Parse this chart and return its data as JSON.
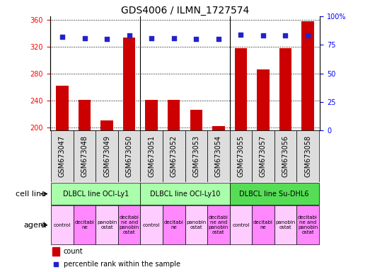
{
  "title": "GDS4006 / ILMN_1727574",
  "samples": [
    "GSM673047",
    "GSM673048",
    "GSM673049",
    "GSM673050",
    "GSM673051",
    "GSM673052",
    "GSM673053",
    "GSM673054",
    "GSM673055",
    "GSM673057",
    "GSM673056",
    "GSM673058"
  ],
  "counts": [
    262,
    241,
    210,
    333,
    241,
    241,
    226,
    202,
    318,
    286,
    318,
    358
  ],
  "percentile_ranks": [
    82,
    81,
    80,
    83,
    81,
    81,
    80,
    80,
    84,
    83,
    83,
    83
  ],
  "ymin": 195,
  "ymax": 365,
  "yticks": [
    200,
    240,
    280,
    320,
    360
  ],
  "y2ticks": [
    0,
    25,
    50,
    75,
    100
  ],
  "y2min": 0,
  "y2max": 100,
  "bar_color": "#cc0000",
  "dot_color": "#2222cc",
  "cell_line_colors": [
    "#aaffaa",
    "#aaffaa",
    "#55dd55"
  ],
  "cell_lines": [
    {
      "label": "DLBCL line OCI-Ly1",
      "start": 0,
      "end": 4
    },
    {
      "label": "DLBCL line OCI-Ly10",
      "start": 4,
      "end": 8
    },
    {
      "label": "DLBCL line Su-DHL6",
      "start": 8,
      "end": 12
    }
  ],
  "agent_labels": [
    "control",
    "decitabi\nne",
    "panobin\nostat",
    "decitabi\nne and\npanobin\nostat",
    "control",
    "decitabi\nne",
    "panobin\nostat",
    "decitabi\nne and\npanobin\nostat",
    "control",
    "decitabi\nne",
    "panobin\nostat",
    "decitabi\nne and\npanobin\nostat"
  ],
  "agent_colors": [
    "#ffccff",
    "#ff88ff",
    "#ffccff",
    "#ff88ff",
    "#ffccff",
    "#ff88ff",
    "#ffccff",
    "#ff88ff",
    "#ffccff",
    "#ff88ff",
    "#ffccff",
    "#ff88ff"
  ],
  "cell_line_row_label": "cell line",
  "agent_row_label": "agent",
  "legend_count_label": "count",
  "legend_pct_label": "percentile rank within the sample",
  "title_fontsize": 10,
  "tick_fontsize": 7,
  "label_fontsize": 8
}
